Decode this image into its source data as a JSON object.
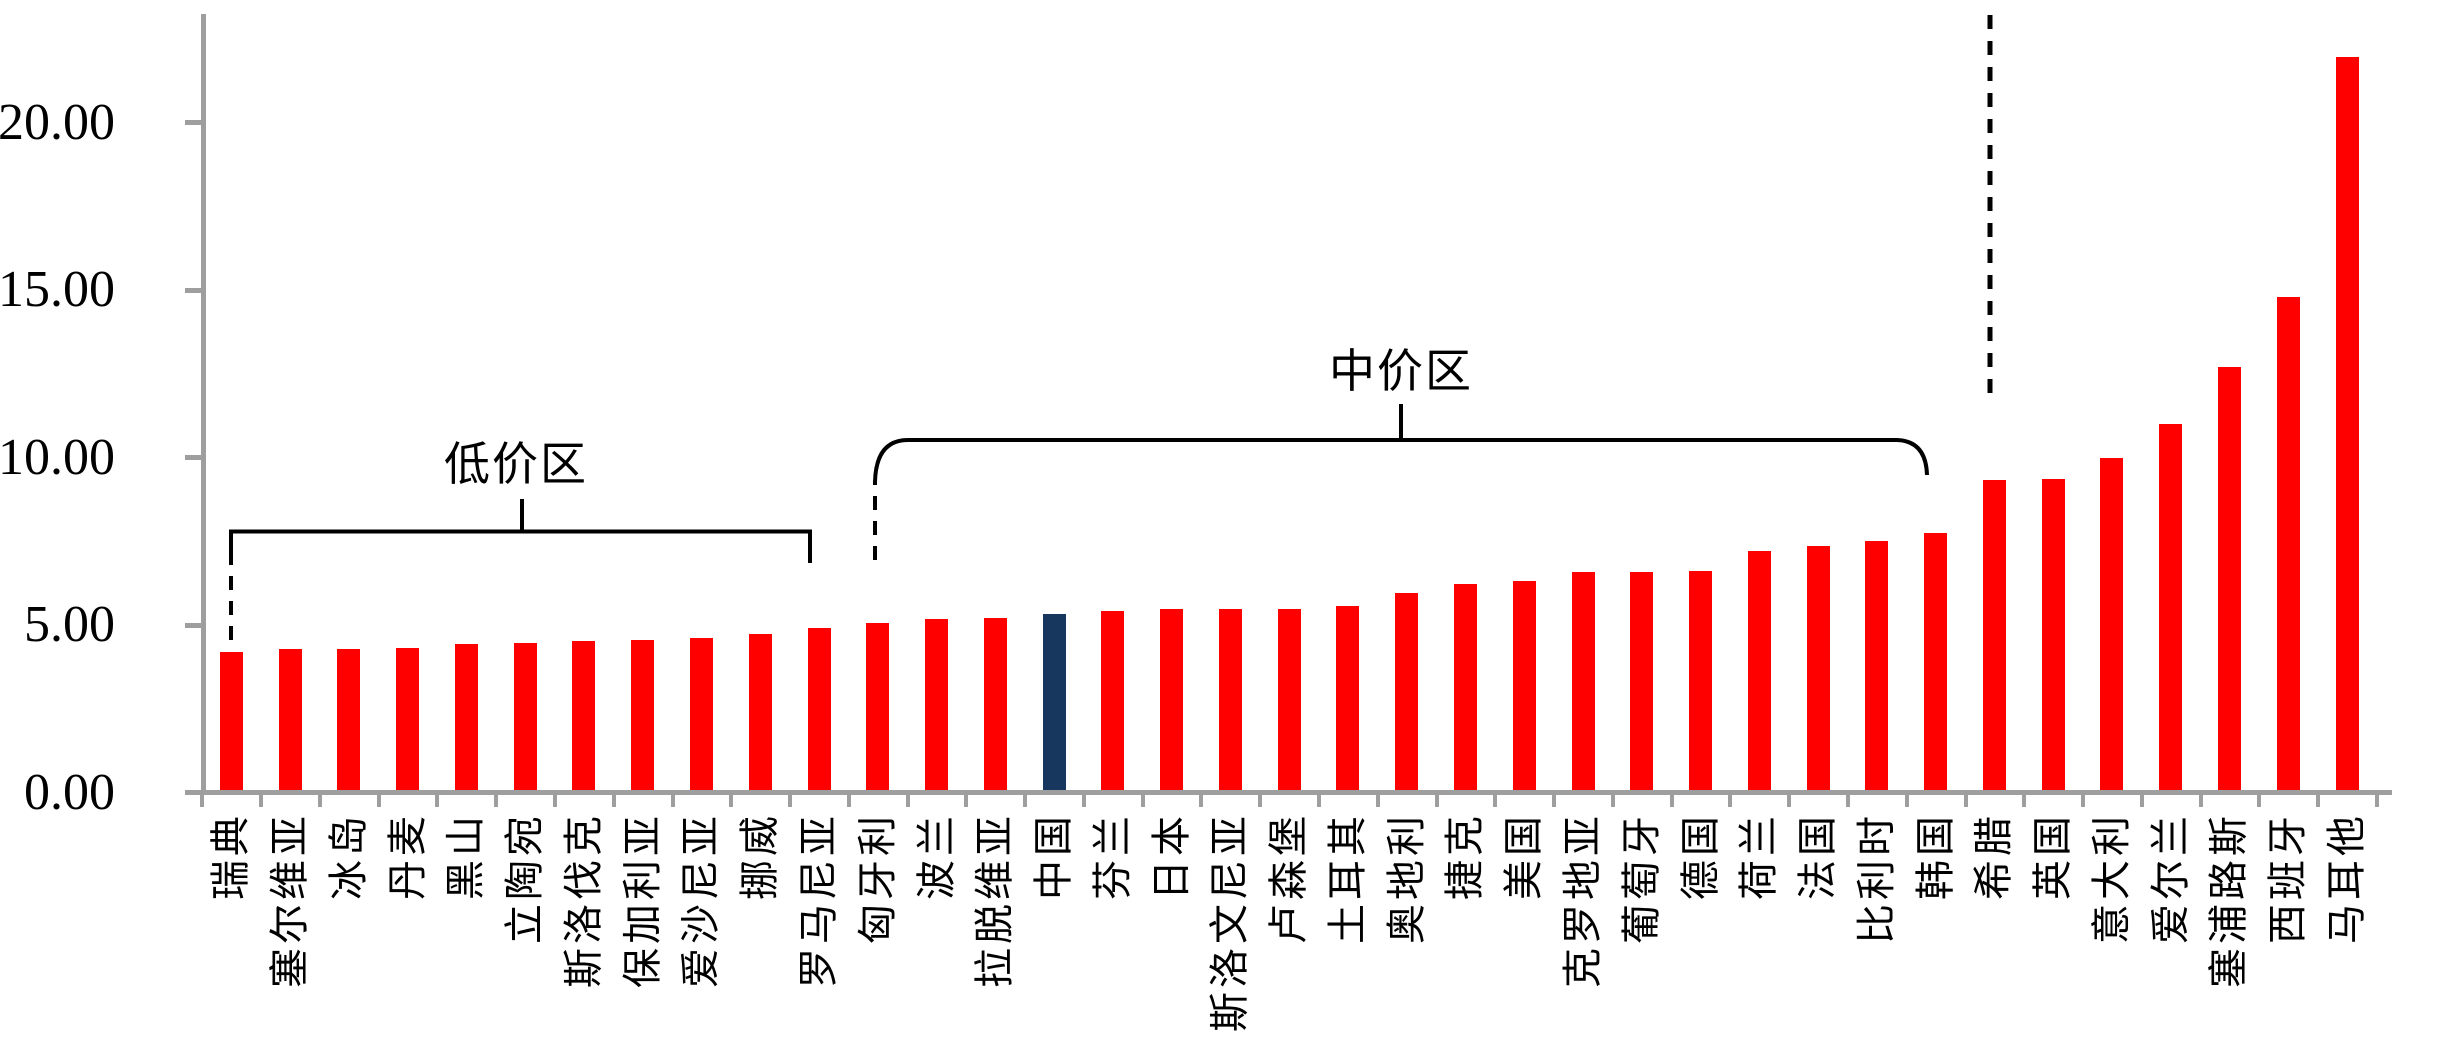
{
  "chart_data": {
    "type": "bar",
    "title": "",
    "xlabel": "",
    "ylabel": "",
    "grid": false,
    "legend": null,
    "ylim": [
      0,
      23
    ],
    "ytick_labels": [
      "0.00",
      "5.00",
      "10.00",
      "15.00",
      "20.00"
    ],
    "ytick_values": [
      0,
      5,
      10,
      15,
      20
    ],
    "categories": [
      "瑞典",
      "塞尔维亚",
      "冰岛",
      "丹麦",
      "黑山",
      "立陶宛",
      "斯洛伐克",
      "保加利亚",
      "爱沙尼亚",
      "挪威",
      "罗马尼亚",
      "匈牙利",
      "波兰",
      "拉脱维亚",
      "中国",
      "芬兰",
      "日本",
      "斯洛文尼亚",
      "卢森堡",
      "土耳其",
      "奥地利",
      "捷克",
      "美国",
      "克罗地亚",
      "葡萄牙",
      "德国",
      "荷兰",
      "法国",
      "比利时",
      "韩国",
      "希腊",
      "英国",
      "意大利",
      "爱尔兰",
      "塞浦路斯",
      "西班牙",
      "马耳他"
    ],
    "values": [
      4.11,
      4.21,
      4.22,
      4.24,
      4.37,
      4.39,
      4.44,
      4.48,
      4.53,
      4.66,
      4.83,
      5.0,
      5.1,
      5.13,
      5.25,
      5.35,
      5.39,
      5.4,
      5.4,
      5.49,
      5.87,
      6.15,
      6.24,
      6.52,
      6.52,
      6.54,
      7.13,
      7.29,
      7.44,
      7.67,
      9.24,
      9.28,
      9.91,
      10.92,
      12.62,
      14.73,
      21.89
    ],
    "bar_color": "#ff0000",
    "highlight": {
      "category": "中国",
      "index": 14,
      "color": "#17375e"
    },
    "axis_color": "#9e9e9e",
    "annotation_color": "#000000",
    "zones": [
      {
        "id": "low",
        "label": "低价区",
        "start_index": 0,
        "end_index": 10
      },
      {
        "id": "mid",
        "label": "中价区",
        "start_index": 11,
        "end_index": 29
      }
    ],
    "high_zone_divider": {
      "style": "dashed",
      "before_category": "希腊"
    }
  }
}
